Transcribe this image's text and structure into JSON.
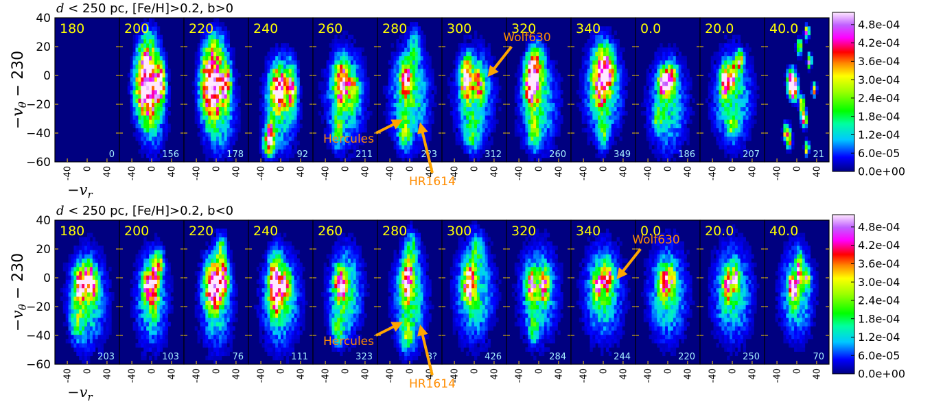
{
  "rows": [
    {
      "title": "d < 250 pc, [Fe/H]>0.2, b>0",
      "title_math": "d",
      "title_rest": " < 250 pc, [Fe/H]>0.2, b>0",
      "panels": [
        {
          "label": "180",
          "count": "0"
        },
        {
          "label": "200",
          "count": "156"
        },
        {
          "label": "220",
          "count": "178"
        },
        {
          "label": "240",
          "count": "92"
        },
        {
          "label": "260",
          "count": "211"
        },
        {
          "label": "280",
          "count": "2?3"
        },
        {
          "label": "300",
          "count": "312"
        },
        {
          "label": "320",
          "count": "260"
        },
        {
          "label": "340",
          "count": "349"
        },
        {
          "label": "0.0",
          "count": "186"
        },
        {
          "label": "20.0",
          "count": "207"
        },
        {
          "label": "40.0",
          "count": "21"
        }
      ],
      "annotations": [
        {
          "text": "Wolf630",
          "panel": 6
        },
        {
          "text": "Hercules",
          "panel": 5
        },
        {
          "text": "HR1614",
          "panel": 5
        }
      ]
    },
    {
      "title": "d < 250 pc, [Fe/H]>0.2, b<0",
      "title_math": "d",
      "title_rest": " < 250 pc, [Fe/H]>0.2, b<0",
      "panels": [
        {
          "label": "180",
          "count": "203"
        },
        {
          "label": "200",
          "count": "103"
        },
        {
          "label": "220",
          "count": "76"
        },
        {
          "label": "240",
          "count": "111"
        },
        {
          "label": "260",
          "count": "323"
        },
        {
          "label": "280",
          "count": "3?"
        },
        {
          "label": "300",
          "count": "426"
        },
        {
          "label": "320",
          "count": "284"
        },
        {
          "label": "340",
          "count": "244"
        },
        {
          "label": "0.0",
          "count": "220"
        },
        {
          "label": "20.0",
          "count": "250"
        },
        {
          "label": "40.0",
          "count": "70"
        }
      ],
      "annotations": [
        {
          "text": "Wolf630",
          "panel": 8
        },
        {
          "text": "Hercules",
          "panel": 5
        },
        {
          "text": "HR1614",
          "panel": 5
        }
      ]
    }
  ],
  "axes": {
    "xlabel": "−v",
    "xlabel_sub": "r",
    "ylabel": "−v",
    "ylabel_sub": "θ",
    "ylabel_rest": " − 230",
    "xticks": [
      "-40",
      "0",
      "40"
    ],
    "yticks": [
      "40",
      "20",
      "0",
      "−20",
      "−40",
      "−60"
    ]
  },
  "colorbar": {
    "ticks": [
      "4.8e-04",
      "4.2e-04",
      "3.6e-04",
      "3.0e-04",
      "2.4e-04",
      "1.8e-04",
      "1.2e-04",
      "6.0e-05",
      "0.0e+00"
    ]
  },
  "chart_data": {
    "type": "heatmap",
    "xlim": [
      -65,
      65
    ],
    "ylim": [
      -60,
      40
    ],
    "clim": [
      0,
      0.00052
    ],
    "colormap": "gist_ncar",
    "rows": [
      {
        "blobs": [
          [],
          [
            [
              -10,
              -5,
              20,
              20,
              0.0006
            ],
            [
              18,
              -5,
              9,
              12,
              0.00035
            ],
            [
              0,
              -20,
              25,
              28,
              0.00018
            ],
            [
              -5,
              20,
              18,
              14,
              0.00012
            ]
          ],
          [
            [
              -10,
              -5,
              18,
              20,
              0.0006
            ],
            [
              20,
              -5,
              9,
              12,
              0.00035
            ],
            [
              5,
              -20,
              30,
              30,
              0.00018
            ],
            [
              0,
              20,
              20,
              12,
              0.00012
            ]
          ],
          [
            [
              -5,
              -10,
              14,
              14,
              0.00045
            ],
            [
              22,
              -8,
              9,
              14,
              0.00036
            ],
            [
              -20,
              -40,
              8,
              8,
              0.0004
            ],
            [
              -25,
              -48,
              10,
              8,
              0.00028
            ],
            [
              0,
              -20,
              30,
              30,
              0.00016
            ]
          ],
          [
            [
              -8,
              -5,
              12,
              12,
              0.00045
            ],
            [
              15,
              -10,
              10,
              10,
              0.00026
            ],
            [
              0,
              -15,
              35,
              30,
              0.00016
            ],
            [
              -15,
              -38,
              10,
              10,
              0.00018
            ]
          ],
          [
            [
              -8,
              -2,
              10,
              10,
              0.00048
            ],
            [
              0,
              -15,
              35,
              30,
              0.00018
            ],
            [
              -10,
              -40,
              12,
              10,
              0.00016
            ],
            [
              10,
              20,
              12,
              12,
              0.00012
            ]
          ],
          [
            [
              -15,
              -2,
              10,
              12,
              0.00052
            ],
            [
              10,
              -5,
              10,
              10,
              0.00026
            ],
            [
              0,
              -15,
              35,
              30,
              0.00016
            ],
            [
              -5,
              -40,
              12,
              10,
              0.00016
            ]
          ],
          [
            [
              -15,
              -5,
              12,
              14,
              0.00058
            ],
            [
              -5,
              5,
              15,
              14,
              0.00032
            ],
            [
              0,
              -20,
              35,
              28,
              0.00015
            ],
            [
              -10,
              -40,
              10,
              10,
              0.0002
            ]
          ],
          [
            [
              -5,
              -2,
              14,
              18,
              0.00045
            ],
            [
              10,
              5,
              12,
              12,
              0.00032
            ],
            [
              0,
              -10,
              35,
              30,
              0.00016
            ],
            [
              0,
              -40,
              10,
              10,
              0.00015
            ]
          ],
          [
            [
              -10,
              -5,
              8,
              8,
              0.00048
            ],
            [
              0,
              -5,
              8,
              8,
              0.00046
            ],
            [
              10,
              0,
              8,
              8,
              0.00034
            ],
            [
              0,
              -20,
              35,
              30,
              0.00015
            ],
            [
              -20,
              -30,
              8,
              8,
              0.00016
            ]
          ],
          [
            [
              -15,
              -5,
              8,
              10,
              0.00055
            ],
            [
              0,
              0,
              8,
              8,
              0.0004
            ],
            [
              15,
              10,
              6,
              6,
              0.0004
            ],
            [
              0,
              -15,
              35,
              30,
              0.00016
            ],
            [
              0,
              -35,
              10,
              8,
              0.00015
            ]
          ],
          [
            [
              -10,
              -5,
              8,
              8,
              0.0006
            ],
            [
              -5,
              -10,
              6,
              6,
              0.0005
            ],
            [
              10,
              -20,
              5,
              5,
              0.0004
            ],
            [
              15,
              -30,
              5,
              5,
              0.00045
            ],
            [
              -20,
              -40,
              6,
              6,
              0.0004
            ],
            [
              -15,
              -45,
              5,
              5,
              0.0003
            ],
            [
              20,
              30,
              4,
              4,
              0.0004
            ],
            [
              25,
              10,
              4,
              4,
              0.0004
            ],
            [
              35,
              -10,
              4,
              4,
              0.0004
            ],
            [
              20,
              -50,
              4,
              4,
              0.0004
            ],
            [
              5,
              20,
              5,
              5,
              0.0003
            ]
          ]
        ]
      },
      {
        "blobs": [
          [
            [
              -15,
              -5,
              10,
              10,
              0.00048
            ],
            [
              0,
              0,
              10,
              10,
              0.00035
            ],
            [
              10,
              -5,
              10,
              10,
              0.00032
            ],
            [
              0,
              -15,
              35,
              30,
              0.00016
            ],
            [
              -20,
              -30,
              12,
              12,
              0.00014
            ]
          ],
          [
            [
              -10,
              -5,
              8,
              10,
              0.0004
            ],
            [
              5,
              -5,
              8,
              14,
              0.0005
            ],
            [
              15,
              10,
              8,
              8,
              0.0003
            ],
            [
              0,
              -15,
              30,
              30,
              0.00015
            ]
          ],
          [
            [
              -5,
              -5,
              14,
              14,
              0.00058
            ],
            [
              15,
              0,
              10,
              10,
              0.00035
            ],
            [
              0,
              -15,
              30,
              30,
              0.00016
            ],
            [
              10,
              20,
              10,
              10,
              0.00018
            ]
          ],
          [
            [
              -10,
              -5,
              12,
              16,
              0.00058
            ],
            [
              10,
              -5,
              10,
              10,
              0.00028
            ],
            [
              0,
              -15,
              35,
              30,
              0.00016
            ]
          ],
          [
            [
              -10,
              -5,
              10,
              10,
              0.00045
            ],
            [
              0,
              -10,
              30,
              28,
              0.00018
            ],
            [
              -15,
              -35,
              12,
              10,
              0.00016
            ]
          ],
          [
            [
              -5,
              -2,
              10,
              12,
              0.0005
            ],
            [
              0,
              -15,
              30,
              30,
              0.00017
            ],
            [
              5,
              20,
              12,
              12,
              0.00014
            ],
            [
              -5,
              -40,
              12,
              10,
              0.00016
            ]
          ],
          [
            [
              -10,
              -5,
              10,
              12,
              0.0005
            ],
            [
              0,
              -10,
              35,
              30,
              0.00016
            ],
            [
              5,
              20,
              12,
              12,
              0.00012
            ]
          ],
          [
            [
              -15,
              -5,
              10,
              10,
              0.00034
            ],
            [
              10,
              -5,
              10,
              10,
              0.00034
            ],
            [
              0,
              -10,
              35,
              30,
              0.00015
            ],
            [
              -10,
              -35,
              10,
              10,
              0.00013
            ]
          ],
          [
            [
              -10,
              -5,
              10,
              10,
              0.00032
            ],
            [
              10,
              0,
              10,
              10,
              0.0003
            ],
            [
              0,
              -10,
              35,
              30,
              0.00016
            ]
          ],
          [
            [
              -10,
              -5,
              8,
              10,
              0.00035
            ],
            [
              5,
              0,
              8,
              8,
              0.00036
            ],
            [
              0,
              -10,
              35,
              30,
              0.00016
            ]
          ],
          [
            [
              -10,
              -5,
              8,
              10,
              0.00036
            ],
            [
              5,
              0,
              8,
              8,
              0.00036
            ],
            [
              0,
              -10,
              35,
              30,
              0.00016
            ]
          ],
          [
            [
              -10,
              -5,
              6,
              6,
              0.0004
            ],
            [
              5,
              5,
              6,
              10,
              0.0004
            ],
            [
              -5,
              -10,
              8,
              8,
              0.00032
            ],
            [
              20,
              0,
              6,
              6,
              0.0003
            ],
            [
              0,
              -10,
              30,
              28,
              0.00016
            ]
          ]
        ]
      }
    ]
  }
}
